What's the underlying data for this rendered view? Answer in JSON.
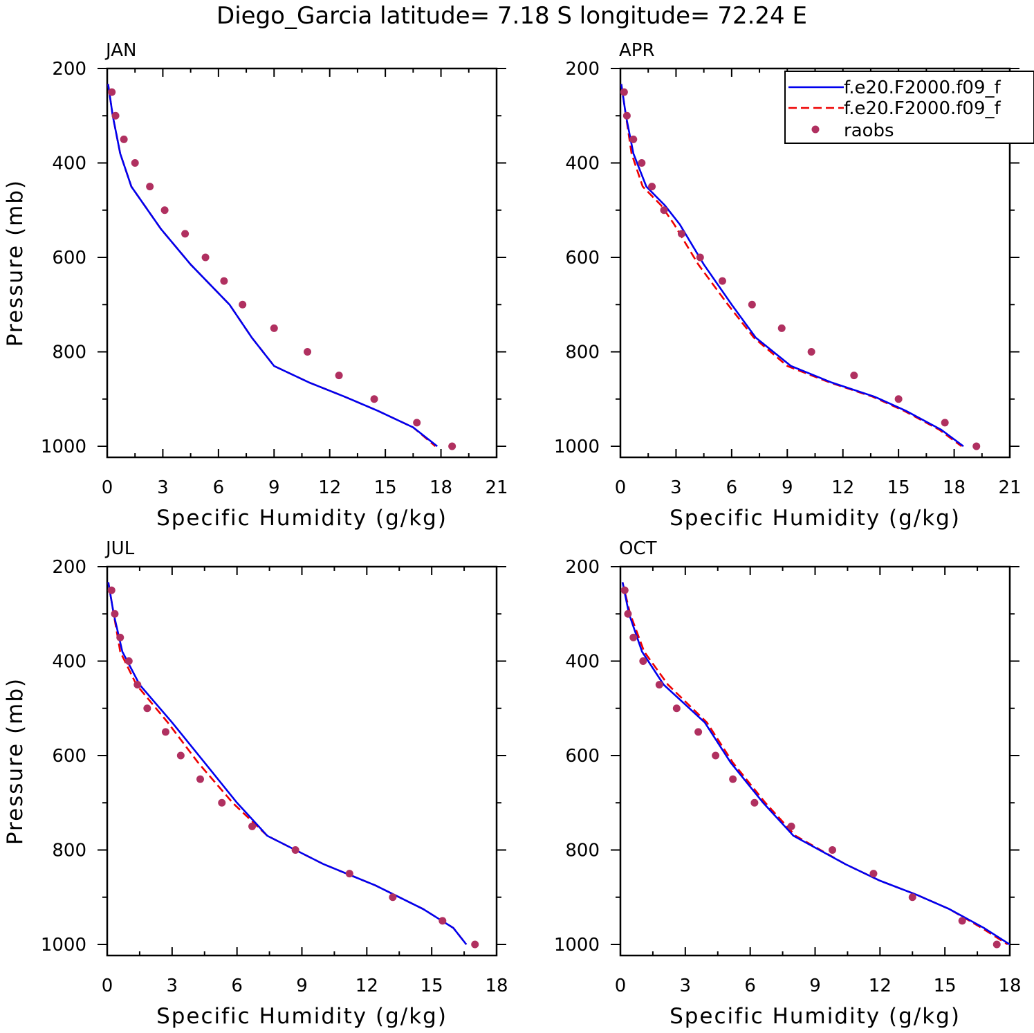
{
  "title": "Diego_Garcia  latitude= 7.18 S longitude= 72.24 E",
  "colors": {
    "model1": "#0000ee",
    "model2": "#ee0000",
    "raobs": "#b03060"
  },
  "legend": [
    {
      "label": "f.e20.F2000.f09_f",
      "style": "solid",
      "color": "#0000ee"
    },
    {
      "label": "f.e20.F2000.f09_f",
      "style": "dashed",
      "color": "#ee0000"
    },
    {
      "label": "raobs",
      "style": "marker",
      "color": "#b03060"
    }
  ],
  "chart_data": [
    {
      "type": "line",
      "panel_title": "JAN",
      "xlabel": "Specific Humidity (g/kg)",
      "ylabel": "Pressure (mb)",
      "xlim": [
        0,
        21
      ],
      "ylim": [
        1000,
        200
      ],
      "xticks": [
        "0",
        "3",
        "6",
        "9",
        "12",
        "15",
        "18",
        "21"
      ],
      "yticks": [
        "200",
        "400",
        "600",
        "800",
        "1000"
      ],
      "pressure": [
        233,
        300,
        380,
        450,
        540,
        615,
        700,
        770,
        830,
        865,
        895,
        925,
        960,
        1000
      ],
      "series": [
        {
          "name": "f.e20.F2000.f09_f",
          "values": [
            0.05,
            0.3,
            0.7,
            1.3,
            2.9,
            4.5,
            6.6,
            7.8,
            9.0,
            10.9,
            12.8,
            14.6,
            16.5,
            17.8
          ]
        },
        {
          "name": "f.e20.F2000.f09_f",
          "values": [
            0.05,
            0.3,
            0.7,
            1.3,
            2.9,
            4.5,
            6.6,
            7.8,
            9.0,
            10.9,
            12.8,
            14.6,
            16.5,
            17.7
          ]
        }
      ],
      "obs": {
        "name": "raobs",
        "pressure": [
          250,
          300,
          350,
          400,
          450,
          500,
          550,
          600,
          650,
          700,
          750,
          800,
          850,
          900,
          950,
          1000
        ],
        "values": [
          0.25,
          0.45,
          0.9,
          1.5,
          2.3,
          3.1,
          4.2,
          5.3,
          6.3,
          7.3,
          9.0,
          10.8,
          12.5,
          14.4,
          16.7,
          18.6
        ]
      }
    },
    {
      "type": "line",
      "panel_title": "APR",
      "xlabel": "Specific Humidity (g/kg)",
      "ylabel": "",
      "xlim": [
        0,
        21
      ],
      "ylim": [
        1000,
        200
      ],
      "xticks": [
        "0",
        "3",
        "6",
        "9",
        "12",
        "15",
        "18",
        "21"
      ],
      "yticks": [
        "200",
        "400",
        "600",
        "800",
        "1000"
      ],
      "pressure": [
        233,
        300,
        380,
        450,
        490,
        530,
        615,
        700,
        770,
        830,
        865,
        895,
        925,
        965,
        1000
      ],
      "series": [
        {
          "name": "f.e20.F2000.f09_f",
          "values": [
            0.05,
            0.3,
            0.7,
            1.4,
            2.4,
            3.2,
            4.5,
            6.0,
            7.3,
            9.2,
            11.4,
            13.7,
            15.4,
            17.3,
            18.5
          ]
        },
        {
          "name": "f.e20.F2000.f09_f",
          "values": [
            0.05,
            0.3,
            0.6,
            1.2,
            2.2,
            2.9,
            4.2,
            5.8,
            7.2,
            9.0,
            11.3,
            13.6,
            15.3,
            17.2,
            18.4
          ]
        }
      ],
      "obs": {
        "name": "raobs",
        "pressure": [
          250,
          300,
          350,
          400,
          450,
          500,
          550,
          600,
          650,
          700,
          750,
          800,
          850,
          900,
          950,
          1000
        ],
        "values": [
          0.2,
          0.35,
          0.7,
          1.15,
          1.7,
          2.35,
          3.3,
          4.3,
          5.5,
          7.1,
          8.7,
          10.3,
          12.6,
          15.0,
          17.5,
          19.2
        ]
      }
    },
    {
      "type": "line",
      "panel_title": "JUL",
      "xlabel": "Specific Humidity (g/kg)",
      "ylabel": "Pressure (mb)",
      "xlim": [
        0,
        18
      ],
      "ylim": [
        1000,
        200
      ],
      "xticks": [
        "0",
        "3",
        "6",
        "9",
        "12",
        "15",
        "18"
      ],
      "yticks": [
        "200",
        "400",
        "600",
        "800",
        "1000"
      ],
      "pressure": [
        233,
        300,
        380,
        450,
        530,
        615,
        700,
        770,
        830,
        875,
        925,
        965,
        1000
      ],
      "series": [
        {
          "name": "f.e20.F2000.f09_f",
          "values": [
            0.05,
            0.3,
            0.7,
            1.5,
            3.0,
            4.5,
            6.0,
            7.4,
            10.0,
            12.4,
            14.6,
            16.0,
            16.6
          ]
        },
        {
          "name": "f.e20.F2000.f09_f",
          "values": [
            0.05,
            0.3,
            0.6,
            1.35,
            2.8,
            4.2,
            5.8,
            7.4,
            10.0,
            12.4,
            14.6,
            16.0,
            16.6
          ]
        }
      ],
      "obs": {
        "name": "raobs",
        "pressure": [
          250,
          300,
          350,
          400,
          450,
          500,
          550,
          600,
          650,
          700,
          750,
          800,
          850,
          900,
          950,
          1000
        ],
        "values": [
          0.2,
          0.35,
          0.6,
          1.0,
          1.4,
          1.85,
          2.7,
          3.4,
          4.3,
          5.3,
          6.7,
          8.7,
          11.2,
          13.2,
          15.5,
          17.0
        ]
      }
    },
    {
      "type": "line",
      "panel_title": "OCT",
      "xlabel": "Specific Humidity (g/kg)",
      "ylabel": "",
      "xlim": [
        0,
        18
      ],
      "ylim": [
        1000,
        200
      ],
      "xticks": [
        "0",
        "3",
        "6",
        "9",
        "12",
        "15",
        "18"
      ],
      "yticks": [
        "200",
        "400",
        "600",
        "800",
        "1000"
      ],
      "pressure": [
        233,
        300,
        380,
        450,
        530,
        615,
        700,
        770,
        830,
        865,
        895,
        925,
        965,
        1000
      ],
      "series": [
        {
          "name": "f.e20.F2000.f09_f",
          "values": [
            0.1,
            0.4,
            1.0,
            2.0,
            3.9,
            5.1,
            6.6,
            8.0,
            10.4,
            12.0,
            13.7,
            15.2,
            16.8,
            18.0
          ]
        },
        {
          "name": "f.e20.F2000.f09_f",
          "values": [
            0.1,
            0.45,
            1.1,
            2.2,
            4.0,
            5.2,
            6.7,
            8.1,
            10.4,
            12.0,
            13.7,
            15.2,
            16.7,
            17.9
          ]
        }
      ],
      "obs": {
        "name": "raobs",
        "pressure": [
          250,
          300,
          350,
          400,
          450,
          500,
          550,
          600,
          650,
          700,
          750,
          800,
          850,
          900,
          950,
          1000
        ],
        "values": [
          0.2,
          0.35,
          0.6,
          1.05,
          1.8,
          2.6,
          3.6,
          4.4,
          5.2,
          6.2,
          7.9,
          9.8,
          11.7,
          13.5,
          15.8,
          17.4
        ]
      }
    }
  ]
}
